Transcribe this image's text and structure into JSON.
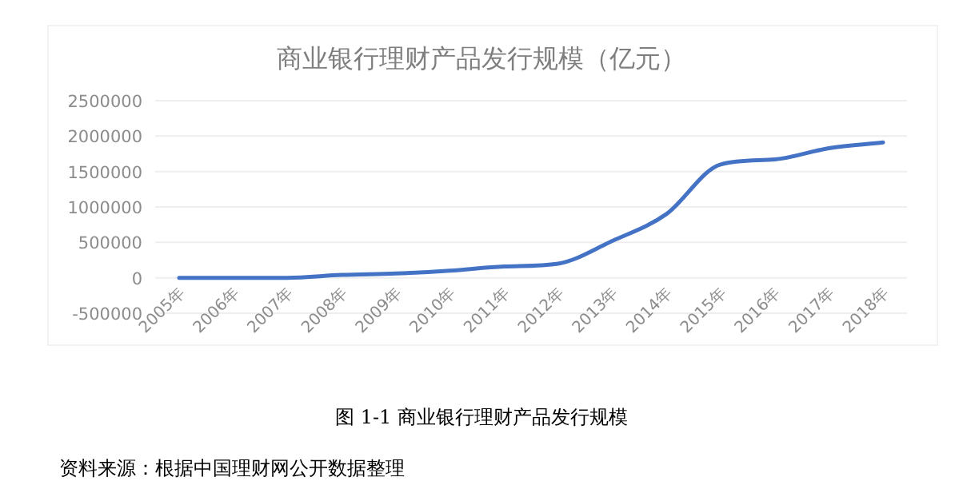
{
  "chart_data": {
    "type": "line",
    "title": "商业银行理财产品发行规模（亿元）",
    "categories": [
      "2005年",
      "2006年",
      "2007年",
      "2008年",
      "2009年",
      "2010年",
      "2011年",
      "2012年",
      "2013年",
      "2014年",
      "2015年",
      "2016年",
      "2017年",
      "2018年"
    ],
    "series": [
      {
        "color": "#4472c4",
        "values": [
          0,
          0,
          0,
          40000,
          60000,
          100000,
          160000,
          200000,
          520000,
          900000,
          1600000,
          1670000,
          1830000,
          1910000
        ]
      }
    ],
    "ylim": [
      -500000,
      2500000
    ],
    "yticks": [
      -500000,
      0,
      500000,
      1000000,
      1500000,
      2000000,
      2500000
    ],
    "grid": "y",
    "annotations": [
      "图 1-1  商业银行理财产品发行规模",
      "资料来源：根据中国理财网公开数据整理"
    ]
  }
}
